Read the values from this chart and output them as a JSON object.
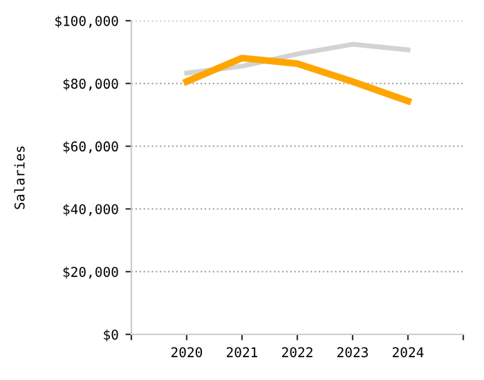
{
  "chart_data": {
    "type": "line",
    "ylabel": "Salaries",
    "x": [
      2020,
      2021,
      2022,
      2023,
      2024
    ],
    "series": [
      {
        "color": "#d3d3d3",
        "values": [
          83300,
          85500,
          89400,
          92500,
          90700
        ]
      },
      {
        "color": "#ffa500",
        "values": [
          80600,
          88100,
          86300,
          80600,
          74400
        ]
      }
    ],
    "xlim": [
      2019,
      2025
    ],
    "xticks": [
      {
        "value": 2019,
        "label": null
      },
      2020,
      2021,
      2022,
      2023,
      2024,
      {
        "value": 2025,
        "label": null
      }
    ],
    "ylim": [
      0,
      100000
    ],
    "yticks": [
      {
        "value": 0,
        "label": "$0"
      },
      {
        "value": 20000,
        "label": "$20,000"
      },
      {
        "value": 40000,
        "label": "$40,000"
      },
      {
        "value": 60000,
        "label": "$60,000"
      },
      {
        "value": 80000,
        "label": "$80,000"
      },
      {
        "value": 100000,
        "label": "$100,000"
      }
    ],
    "grid": "y",
    "marker": "none",
    "line_style": "solid",
    "legend": false
  }
}
